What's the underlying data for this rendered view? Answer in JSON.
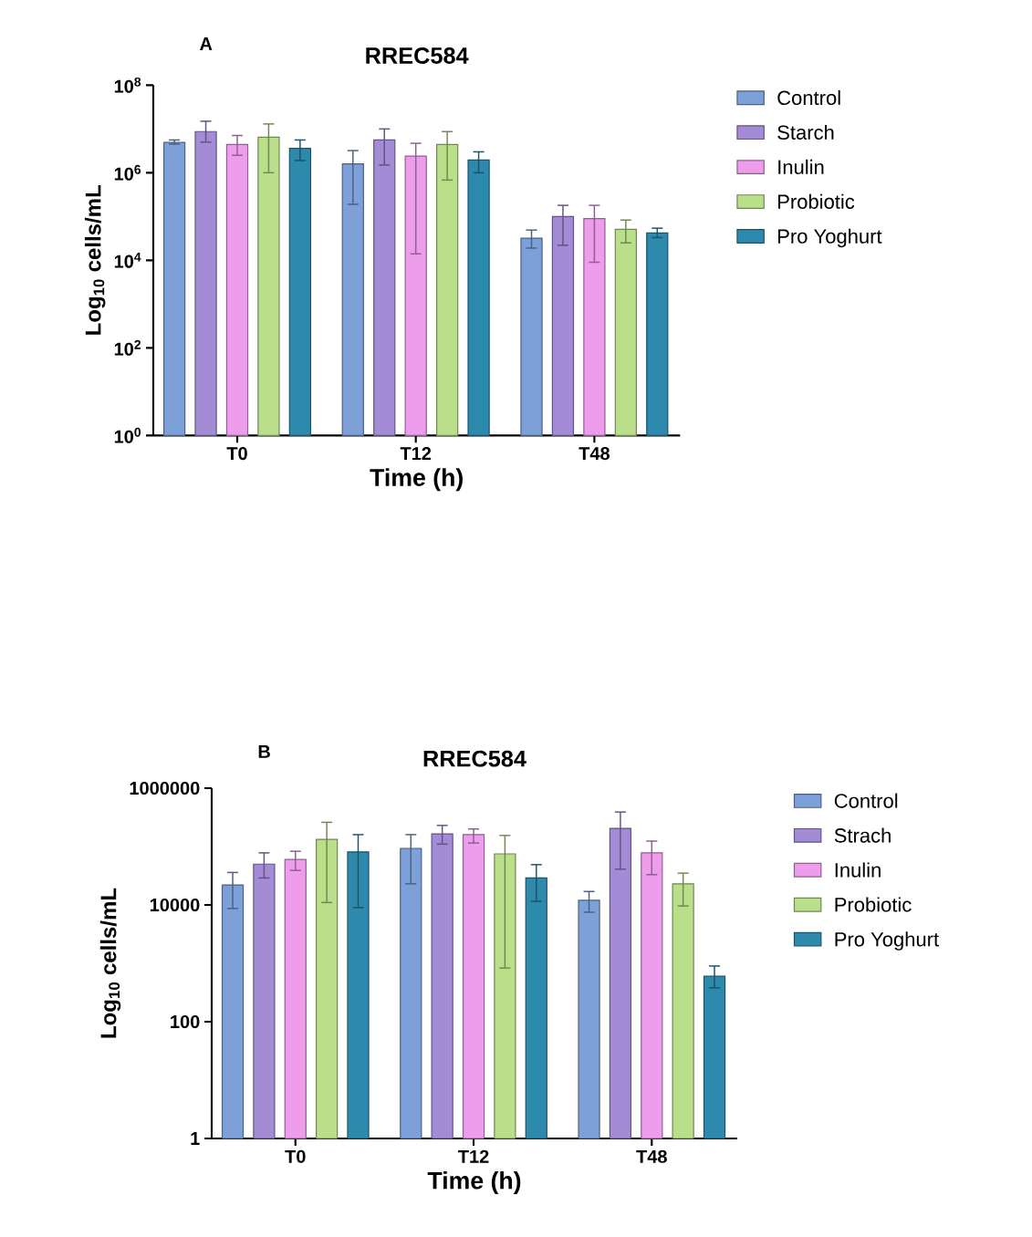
{
  "chart_data": [
    {
      "type": "bar",
      "title": "RREC584",
      "annotations": [
        "A"
      ],
      "xlabel": "Time (h)",
      "ylabel": "Log$_{10}$ cells/mL",
      "categories": [
        "T0",
        "T12",
        "T48"
      ],
      "log": "y",
      "legend": "right",
      "ylim": [
        1,
        100000000
      ],
      "yticks": [
        {
          "value": 1,
          "label": "10$^{0}$"
        },
        {
          "value": 100,
          "label": "10$^{2}$"
        },
        {
          "value": 10000,
          "label": "10$^{4}$"
        },
        {
          "value": 1000000,
          "label": "10$^{6}$"
        },
        {
          "value": 100000000,
          "label": "10$^{8}$"
        }
      ],
      "series": [
        {
          "name": "Control",
          "color": "#7da0d8",
          "values": [
            4900000,
            1600000,
            32000
          ],
          "errors": [
            [
              4500000,
              5600000
            ],
            [
              190000,
              3200000
            ],
            [
              19000,
              49000
            ]
          ]
        },
        {
          "name": "Starch",
          "color": "#a38bd6",
          "values": [
            8700000,
            5600000,
            100000
          ],
          "errors": [
            [
              5000000,
              15000000
            ],
            [
              1500000,
              10000000
            ],
            [
              22000,
              180000
            ]
          ]
        },
        {
          "name": "Inulin",
          "color": "#ee9ded",
          "values": [
            4400000,
            2400000,
            90000
          ],
          "errors": [
            [
              2500000,
              7100000
            ],
            [
              14000,
              4700000
            ],
            [
              9000,
              180000
            ]
          ]
        },
        {
          "name": "Probiotic",
          "color": "#badf8a",
          "values": [
            6500000,
            4400000,
            51000
          ],
          "errors": [
            [
              1000000,
              13000000
            ],
            [
              680000,
              8700000
            ],
            [
              25000,
              83000
            ]
          ]
        },
        {
          "name": "Pro Yoghurt",
          "color": "#2e8aad",
          "values": [
            3600000,
            1950000,
            42000
          ],
          "errors": [
            [
              1900000,
              5600000
            ],
            [
              1000000,
              3000000
            ],
            [
              33000,
              54000
            ]
          ]
        }
      ]
    },
    {
      "type": "bar",
      "title": "RREC584",
      "annotations": [
        "B"
      ],
      "xlabel": "Time (h)",
      "ylabel": "Log$_{10}$ cells/mL",
      "categories": [
        "T0",
        "T12",
        "T48"
      ],
      "log": "y",
      "legend": "right",
      "ylim": [
        1,
        1000000
      ],
      "yticks": [
        1,
        100,
        10000,
        1000000
      ],
      "series": [
        {
          "name": "Control",
          "color": "#7da0d8",
          "values": [
            22000,
            93000,
            12000
          ],
          "errors": [
            [
              8700,
              36000
            ],
            [
              23000,
              160000
            ],
            [
              7500,
              17000
            ]
          ]
        },
        {
          "name": "Strach",
          "color": "#a38bd6",
          "values": [
            50000,
            165000,
            205000
          ],
          "errors": [
            [
              29000,
              78000
            ],
            [
              110000,
              230000
            ],
            [
              41000,
              390000
            ]
          ]
        },
        {
          "name": "Inulin",
          "color": "#ee9ded",
          "values": [
            60000,
            160000,
            78000
          ],
          "errors": [
            [
              39000,
              83000
            ],
            [
              115000,
              200000
            ],
            [
              33000,
              124000
            ]
          ]
        },
        {
          "name": "Probiotic",
          "color": "#badf8a",
          "values": [
            133000,
            75000,
            23000
          ],
          "errors": [
            [
              11000,
              260000
            ],
            [
              830,
              155000
            ],
            [
              9600,
              35000
            ]
          ]
        },
        {
          "name": "Pro Yoghurt",
          "color": "#2e8aad",
          "values": [
            81000,
            29000,
            600
          ],
          "errors": [
            [
              9000,
              160000
            ],
            [
              11500,
              49000
            ],
            [
              380,
              900
            ]
          ]
        }
      ]
    }
  ]
}
